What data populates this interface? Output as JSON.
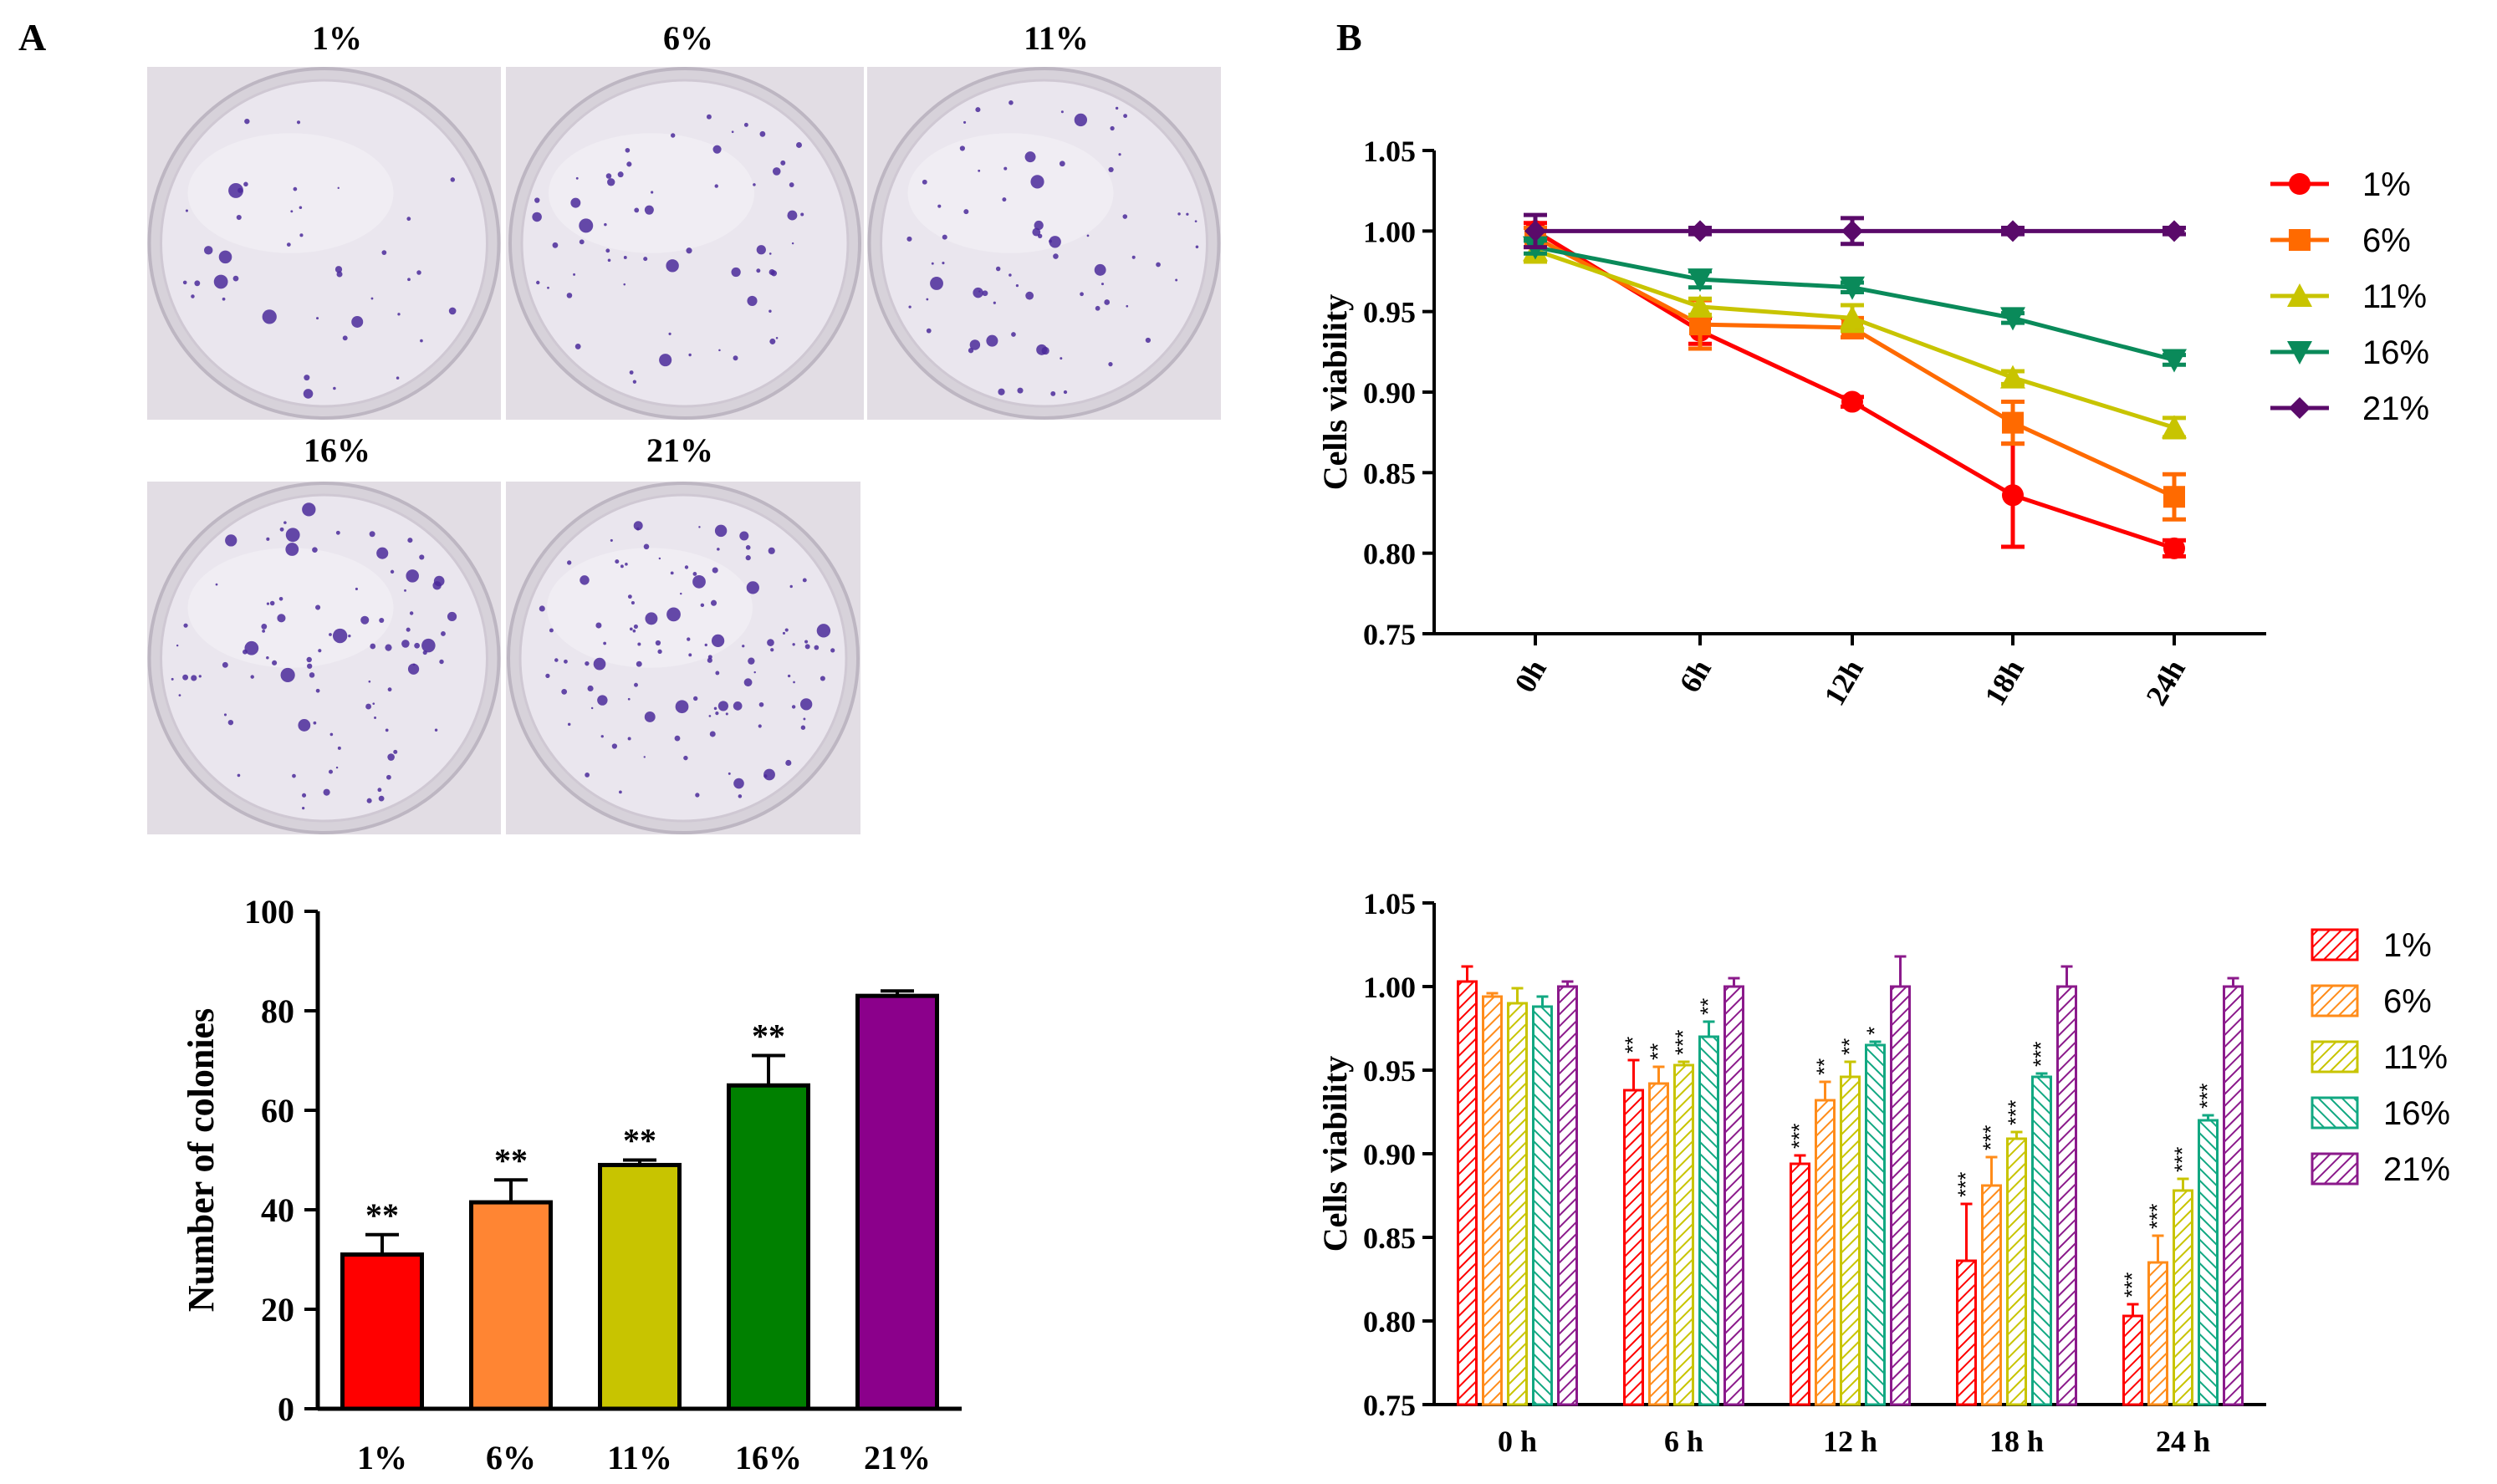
{
  "panels": {
    "a_label": "A",
    "b_label": "B"
  },
  "photos": [
    {
      "label": "1%",
      "dots": 40
    },
    {
      "label": "6%",
      "dots": 60
    },
    {
      "label": "11%",
      "dots": 70
    },
    {
      "label": "16%",
      "dots": 90
    },
    {
      "label": "21%",
      "dots": 110
    }
  ],
  "chart_data": [
    {
      "type": "bar",
      "categories": [
        "1%",
        "6%",
        "11%",
        "16%",
        "21%"
      ],
      "values": [
        31,
        41.5,
        49,
        65,
        83
      ],
      "errors": [
        4,
        4.5,
        1,
        6,
        1
      ],
      "significance": [
        "**",
        "**",
        "**",
        "**",
        ""
      ],
      "colors": [
        "#ff0000",
        "#ff8533",
        "#c8c400",
        "#008000",
        "#8b008b"
      ],
      "ylabel": "Number of colonies",
      "ylim": [
        0,
        100
      ],
      "yticks": [
        0,
        20,
        40,
        60,
        80,
        100
      ]
    },
    {
      "type": "line",
      "categories": [
        "0h",
        "6h",
        "12h",
        "18h",
        "24h"
      ],
      "ylabel": "Cells viability",
      "ylim": [
        0.75,
        1.05
      ],
      "yticks": [
        "0.75",
        "0.80",
        "0.85",
        "0.90",
        "0.95",
        "1.00",
        "1.05"
      ],
      "legend": "right",
      "series": [
        {
          "name": "1%",
          "marker": "circle",
          "color": "#ff0000",
          "values": [
            1.0,
            0.938,
            0.894,
            0.836,
            0.803
          ],
          "errors": [
            0.005,
            0.008,
            0.003,
            0.032,
            0.005
          ]
        },
        {
          "name": "6%",
          "marker": "square",
          "color": "#ff6a00",
          "values": [
            0.996,
            0.942,
            0.94,
            0.881,
            0.835
          ],
          "errors": [
            0.006,
            0.015,
            0.006,
            0.013,
            0.014
          ]
        },
        {
          "name": "11%",
          "marker": "triangle-up",
          "color": "#c8c400",
          "values": [
            0.988,
            0.953,
            0.946,
            0.909,
            0.878
          ],
          "errors": [
            0.007,
            0.005,
            0.008,
            0.004,
            0.006
          ]
        },
        {
          "name": "16%",
          "marker": "triangle-down",
          "color": "#0a8a5a",
          "values": [
            0.99,
            0.97,
            0.965,
            0.946,
            0.92
          ],
          "errors": [
            0.004,
            0.005,
            0.003,
            0.003,
            0.003
          ]
        },
        {
          "name": "21%",
          "marker": "diamond",
          "color": "#5a0a6a",
          "values": [
            1.0,
            1.0,
            1.0,
            1.0,
            1.0
          ],
          "errors": [
            0.01,
            0.002,
            0.008,
            0.002,
            0.002
          ]
        }
      ]
    },
    {
      "type": "bar",
      "categories": [
        "0 h",
        "6 h",
        "12 h",
        "18 h",
        "24 h"
      ],
      "ylabel": "Cells viability",
      "ylim": [
        0.75,
        1.05
      ],
      "yticks": [
        "0.75",
        "0.80",
        "0.85",
        "0.90",
        "0.95",
        "1.00",
        "1.05"
      ],
      "legend": "right",
      "series": [
        {
          "name": "1%",
          "color": "#ff0000",
          "values": [
            1.003,
            0.938,
            0.894,
            0.836,
            0.803
          ],
          "errors": [
            0.009,
            0.018,
            0.005,
            0.034,
            0.007
          ],
          "significance": [
            "",
            "**",
            "***",
            "***",
            "***"
          ]
        },
        {
          "name": "6%",
          "color": "#ff8c1a",
          "values": [
            0.994,
            0.942,
            0.932,
            0.881,
            0.835
          ],
          "errors": [
            0.002,
            0.01,
            0.011,
            0.017,
            0.016
          ],
          "significance": [
            "",
            "**",
            "**",
            "***",
            "***"
          ]
        },
        {
          "name": "11%",
          "color": "#c8c400",
          "values": [
            0.99,
            0.953,
            0.946,
            0.909,
            0.878
          ],
          "errors": [
            0.009,
            0.002,
            0.009,
            0.004,
            0.007
          ],
          "significance": [
            "",
            "***",
            "**",
            "***",
            "***"
          ]
        },
        {
          "name": "16%",
          "color": "#12a882",
          "values": [
            0.988,
            0.97,
            0.965,
            0.946,
            0.92
          ],
          "errors": [
            0.006,
            0.009,
            0.002,
            0.002,
            0.003
          ],
          "significance": [
            "",
            "**",
            "*",
            "***",
            "***"
          ]
        },
        {
          "name": "21%",
          "color": "#8b1a8b",
          "values": [
            1.0,
            1.0,
            1.0,
            1.0,
            1.0
          ],
          "errors": [
            0.003,
            0.005,
            0.018,
            0.012,
            0.005
          ],
          "significance": [
            "",
            "",
            "",
            "",
            ""
          ]
        }
      ]
    }
  ]
}
